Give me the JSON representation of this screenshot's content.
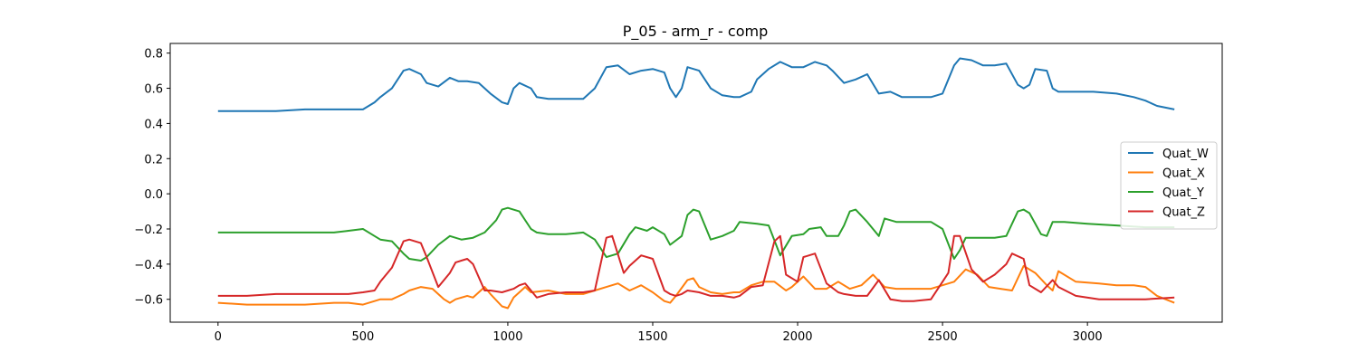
{
  "chart_data": {
    "type": "line",
    "title": "P_05 - arm_r - comp",
    "xlabel": "",
    "ylabel": "",
    "xlim": [
      -165,
      3465
    ],
    "ylim": [
      -0.73,
      0.855
    ],
    "xticks": [
      0,
      500,
      1000,
      1500,
      2000,
      2500,
      3000
    ],
    "xtick_labels": [
      "0",
      "500",
      "1000",
      "1500",
      "2000",
      "2500",
      "3000"
    ],
    "yticks": [
      0.8,
      0.6,
      0.4,
      0.2,
      0.0,
      -0.2,
      -0.4,
      -0.6
    ],
    "ytick_labels": [
      "0.8",
      "0.6",
      "0.4",
      "0.2",
      "0.0",
      "−0.2",
      "−0.4",
      "−0.6"
    ],
    "grid": false,
    "legend_position": "center-right",
    "series": [
      {
        "name": "Quat_W",
        "color": "#1f77b4",
        "x": [
          0,
          100,
          200,
          300,
          400,
          450,
          500,
          540,
          560,
          600,
          640,
          660,
          700,
          720,
          760,
          800,
          830,
          860,
          900,
          940,
          980,
          1000,
          1020,
          1040,
          1080,
          1100,
          1140,
          1200,
          1260,
          1300,
          1340,
          1380,
          1420,
          1460,
          1500,
          1540,
          1560,
          1580,
          1600,
          1620,
          1660,
          1700,
          1740,
          1780,
          1800,
          1840,
          1860,
          1900,
          1940,
          1980,
          2020,
          2060,
          2100,
          2120,
          2160,
          2200,
          2240,
          2280,
          2320,
          2360,
          2400,
          2460,
          2500,
          2540,
          2560,
          2600,
          2640,
          2680,
          2720,
          2760,
          2780,
          2800,
          2820,
          2860,
          2880,
          2900,
          2960,
          3020,
          3100,
          3160,
          3200,
          3240,
          3300
        ],
        "values": [
          0.47,
          0.47,
          0.47,
          0.48,
          0.48,
          0.48,
          0.48,
          0.52,
          0.55,
          0.6,
          0.7,
          0.71,
          0.68,
          0.63,
          0.61,
          0.66,
          0.64,
          0.64,
          0.63,
          0.57,
          0.52,
          0.51,
          0.6,
          0.63,
          0.6,
          0.55,
          0.54,
          0.54,
          0.54,
          0.6,
          0.72,
          0.73,
          0.68,
          0.7,
          0.71,
          0.69,
          0.6,
          0.55,
          0.6,
          0.72,
          0.7,
          0.6,
          0.56,
          0.55,
          0.55,
          0.58,
          0.65,
          0.71,
          0.75,
          0.72,
          0.72,
          0.75,
          0.73,
          0.7,
          0.63,
          0.65,
          0.68,
          0.57,
          0.58,
          0.55,
          0.55,
          0.55,
          0.57,
          0.73,
          0.77,
          0.76,
          0.73,
          0.73,
          0.74,
          0.62,
          0.6,
          0.62,
          0.71,
          0.7,
          0.6,
          0.58,
          0.58,
          0.58,
          0.57,
          0.55,
          0.53,
          0.5,
          0.48
        ]
      },
      {
        "name": "Quat_X",
        "color": "#ff7f0e",
        "x": [
          0,
          100,
          200,
          300,
          400,
          450,
          500,
          540,
          560,
          600,
          640,
          660,
          700,
          740,
          780,
          800,
          820,
          860,
          880,
          920,
          940,
          980,
          1000,
          1020,
          1060,
          1080,
          1140,
          1200,
          1260,
          1300,
          1340,
          1380,
          1420,
          1460,
          1500,
          1540,
          1560,
          1580,
          1620,
          1640,
          1660,
          1700,
          1740,
          1780,
          1800,
          1840,
          1880,
          1920,
          1960,
          1980,
          2020,
          2060,
          2100,
          2140,
          2180,
          2220,
          2260,
          2300,
          2340,
          2400,
          2460,
          2500,
          2540,
          2580,
          2620,
          2660,
          2700,
          2740,
          2780,
          2820,
          2860,
          2880,
          2900,
          2960,
          3040,
          3100,
          3160,
          3200,
          3240,
          3300
        ],
        "values": [
          -0.62,
          -0.63,
          -0.63,
          -0.63,
          -0.62,
          -0.62,
          -0.63,
          -0.61,
          -0.6,
          -0.6,
          -0.57,
          -0.55,
          -0.53,
          -0.54,
          -0.6,
          -0.62,
          -0.6,
          -0.58,
          -0.59,
          -0.53,
          -0.57,
          -0.64,
          -0.65,
          -0.59,
          -0.53,
          -0.56,
          -0.55,
          -0.57,
          -0.57,
          -0.55,
          -0.53,
          -0.51,
          -0.55,
          -0.52,
          -0.56,
          -0.61,
          -0.62,
          -0.58,
          -0.49,
          -0.48,
          -0.53,
          -0.56,
          -0.57,
          -0.56,
          -0.56,
          -0.52,
          -0.5,
          -0.5,
          -0.55,
          -0.53,
          -0.47,
          -0.54,
          -0.54,
          -0.5,
          -0.54,
          -0.52,
          -0.46,
          -0.53,
          -0.54,
          -0.54,
          -0.54,
          -0.52,
          -0.5,
          -0.43,
          -0.46,
          -0.53,
          -0.54,
          -0.55,
          -0.41,
          -0.45,
          -0.52,
          -0.55,
          -0.44,
          -0.5,
          -0.51,
          -0.52,
          -0.52,
          -0.53,
          -0.58,
          -0.62
        ]
      },
      {
        "name": "Quat_Y",
        "color": "#2ca02c",
        "x": [
          0,
          100,
          200,
          300,
          400,
          450,
          500,
          540,
          560,
          600,
          640,
          660,
          700,
          720,
          760,
          800,
          840,
          880,
          920,
          960,
          980,
          1000,
          1040,
          1080,
          1100,
          1140,
          1200,
          1260,
          1300,
          1340,
          1380,
          1420,
          1440,
          1480,
          1500,
          1540,
          1560,
          1600,
          1620,
          1640,
          1660,
          1700,
          1740,
          1780,
          1800,
          1860,
          1900,
          1940,
          1980,
          2020,
          2040,
          2080,
          2100,
          2140,
          2160,
          2180,
          2200,
          2240,
          2280,
          2300,
          2340,
          2400,
          2460,
          2500,
          2540,
          2560,
          2580,
          2620,
          2680,
          2720,
          2760,
          2780,
          2800,
          2840,
          2860,
          2880,
          2920,
          3000,
          3100,
          3200,
          3300
        ],
        "values": [
          -0.22,
          -0.22,
          -0.22,
          -0.22,
          -0.22,
          -0.21,
          -0.2,
          -0.24,
          -0.26,
          -0.27,
          -0.34,
          -0.37,
          -0.38,
          -0.36,
          -0.29,
          -0.24,
          -0.26,
          -0.25,
          -0.22,
          -0.15,
          -0.09,
          -0.08,
          -0.1,
          -0.2,
          -0.22,
          -0.23,
          -0.23,
          -0.22,
          -0.26,
          -0.36,
          -0.34,
          -0.23,
          -0.19,
          -0.21,
          -0.19,
          -0.23,
          -0.29,
          -0.24,
          -0.12,
          -0.09,
          -0.1,
          -0.26,
          -0.24,
          -0.21,
          -0.16,
          -0.17,
          -0.18,
          -0.35,
          -0.24,
          -0.23,
          -0.2,
          -0.19,
          -0.24,
          -0.24,
          -0.18,
          -0.1,
          -0.09,
          -0.16,
          -0.24,
          -0.14,
          -0.16,
          -0.16,
          -0.16,
          -0.2,
          -0.37,
          -0.32,
          -0.25,
          -0.25,
          -0.25,
          -0.24,
          -0.1,
          -0.09,
          -0.11,
          -0.23,
          -0.24,
          -0.16,
          -0.16,
          -0.17,
          -0.18,
          -0.19,
          -0.19
        ]
      },
      {
        "name": "Quat_Z",
        "color": "#d62728",
        "x": [
          0,
          100,
          200,
          300,
          400,
          450,
          500,
          540,
          560,
          600,
          640,
          660,
          700,
          720,
          760,
          800,
          820,
          860,
          880,
          920,
          940,
          980,
          1020,
          1040,
          1060,
          1080,
          1100,
          1140,
          1200,
          1260,
          1300,
          1340,
          1360,
          1400,
          1420,
          1460,
          1500,
          1540,
          1560,
          1580,
          1600,
          1620,
          1660,
          1700,
          1740,
          1780,
          1800,
          1840,
          1880,
          1920,
          1940,
          1960,
          2000,
          2020,
          2060,
          2100,
          2140,
          2160,
          2200,
          2240,
          2280,
          2320,
          2360,
          2400,
          2460,
          2500,
          2520,
          2540,
          2560,
          2600,
          2640,
          2680,
          2720,
          2740,
          2780,
          2800,
          2840,
          2880,
          2900,
          2960,
          3040,
          3100,
          3200,
          3300
        ],
        "values": [
          -0.58,
          -0.58,
          -0.57,
          -0.57,
          -0.57,
          -0.57,
          -0.56,
          -0.55,
          -0.5,
          -0.42,
          -0.27,
          -0.26,
          -0.28,
          -0.36,
          -0.53,
          -0.45,
          -0.39,
          -0.37,
          -0.4,
          -0.55,
          -0.55,
          -0.56,
          -0.54,
          -0.52,
          -0.51,
          -0.55,
          -0.59,
          -0.57,
          -0.56,
          -0.56,
          -0.55,
          -0.25,
          -0.24,
          -0.45,
          -0.41,
          -0.35,
          -0.37,
          -0.55,
          -0.57,
          -0.58,
          -0.57,
          -0.55,
          -0.56,
          -0.58,
          -0.58,
          -0.59,
          -0.58,
          -0.53,
          -0.52,
          -0.27,
          -0.24,
          -0.46,
          -0.5,
          -0.36,
          -0.34,
          -0.51,
          -0.56,
          -0.57,
          -0.58,
          -0.58,
          -0.49,
          -0.6,
          -0.61,
          -0.61,
          -0.6,
          -0.5,
          -0.45,
          -0.24,
          -0.24,
          -0.43,
          -0.5,
          -0.46,
          -0.4,
          -0.34,
          -0.37,
          -0.52,
          -0.56,
          -0.49,
          -0.53,
          -0.58,
          -0.6,
          -0.6,
          -0.6,
          -0.59
        ]
      }
    ]
  }
}
